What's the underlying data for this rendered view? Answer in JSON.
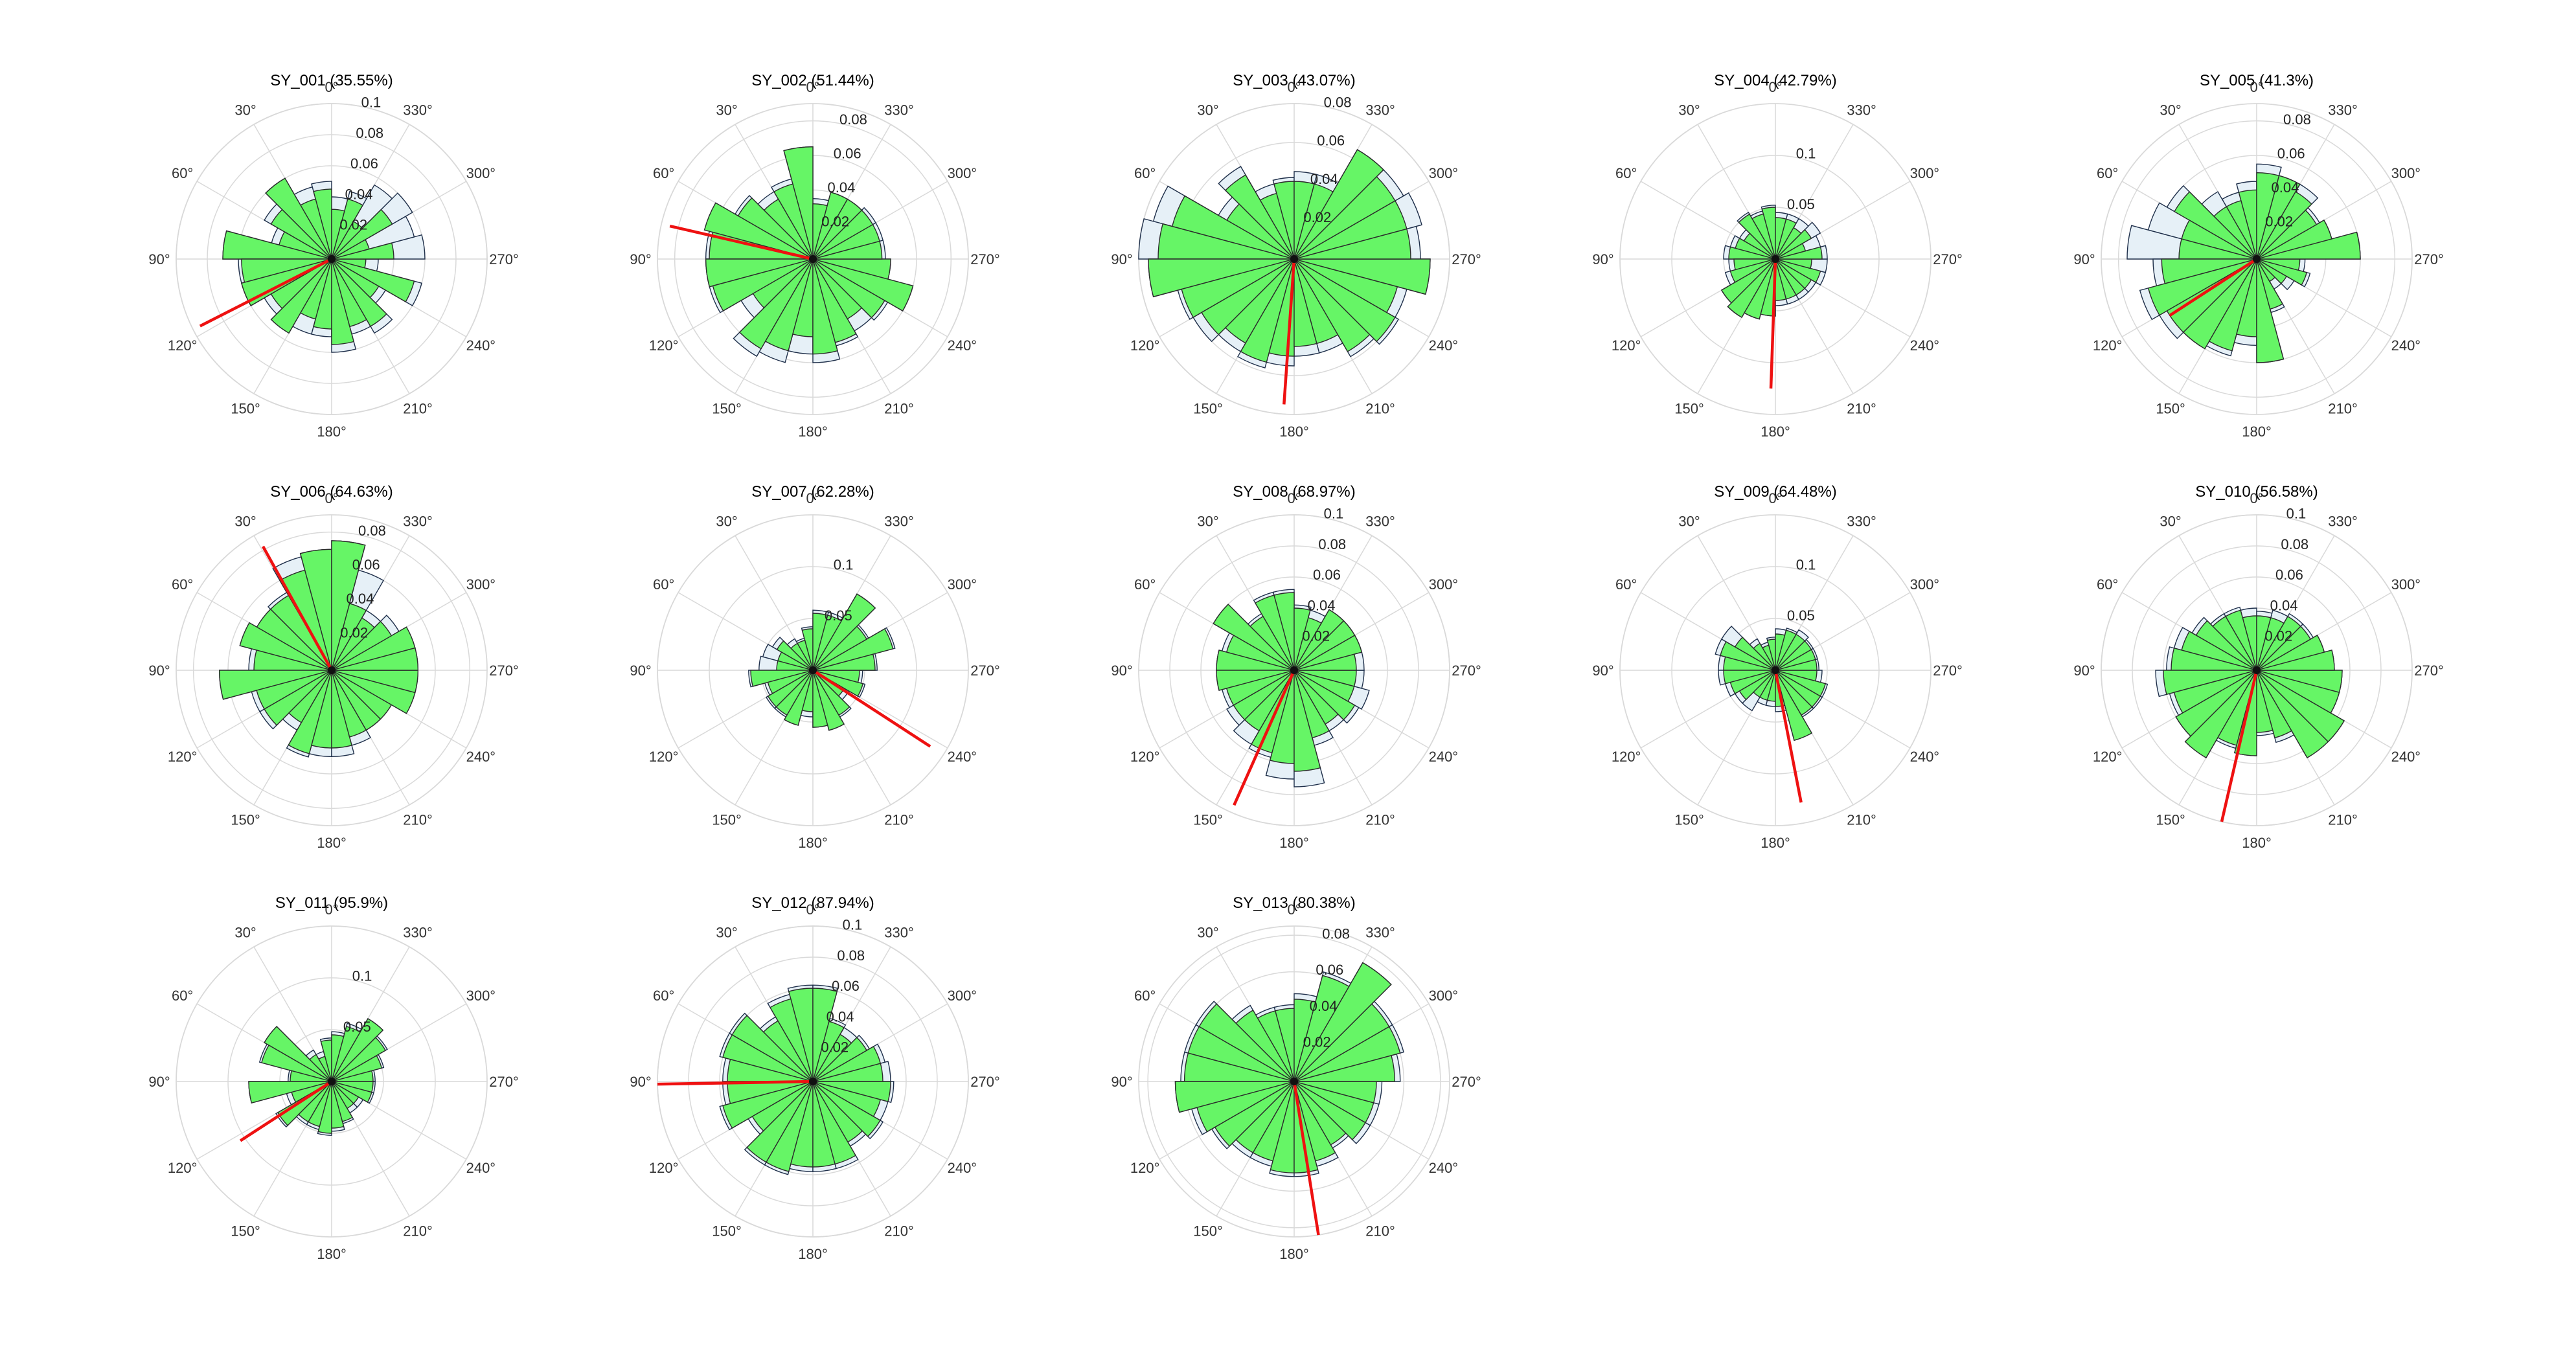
{
  "colors": {
    "bar_fill": "#66f566",
    "bar_edge": "#2b2b2b",
    "ghost_fill": "#e6f0f7",
    "ghost_edge": "#1f2f4a",
    "grid": "#d9d9d9",
    "mean_line": "#ee1111",
    "background": "#ffffff"
  },
  "chart_data": [
    {
      "type": "polar-bar",
      "title": "SY_001 (35.55%)",
      "theta_zero": "top",
      "theta_direction": "counterclockwise",
      "angle_ticks": [
        "0°",
        "30°",
        "60°",
        "90°",
        "120°",
        "150°",
        "180°",
        "210°",
        "240°",
        "270°",
        "300°",
        "330°"
      ],
      "r_ticks": [
        "0.02",
        "0.04",
        "0.06",
        "0.08",
        "0.1"
      ],
      "rmax": 0.1,
      "bins": 24,
      "values": [
        0.045,
        0.04,
        0.06,
        0.045,
        0.035,
        0.07,
        0.058,
        0.06,
        0.045,
        0.055,
        0.04,
        0.045,
        0.055,
        0.045,
        0.05,
        0.035,
        0.055,
        0.022,
        0.04,
        0.025,
        0.045,
        0.028,
        0.04,
        0.032
      ],
      "ghost": [
        0.05,
        0.048,
        0.06,
        0.05,
        0.04,
        0.07,
        0.06,
        0.06,
        0.05,
        0.055,
        0.05,
        0.05,
        0.06,
        0.05,
        0.055,
        0.04,
        0.06,
        0.03,
        0.06,
        0.055,
        0.06,
        0.055,
        0.045,
        0.04
      ],
      "mean_angle": 117,
      "mean_length": 0.095
    },
    {
      "type": "polar-bar",
      "title": "SY_002 (51.44%)",
      "theta_zero": "top",
      "theta_direction": "counterclockwise",
      "angle_ticks": [
        "0°",
        "30°",
        "60°",
        "90°",
        "120°",
        "150°",
        "180°",
        "210°",
        "240°",
        "270°",
        "300°",
        "330°"
      ],
      "r_ticks": [
        "0.02",
        "0.04",
        "0.06",
        "0.08"
      ],
      "rmax": 0.09,
      "bins": 24,
      "values": [
        0.065,
        0.045,
        0.04,
        0.05,
        0.065,
        0.06,
        0.062,
        0.06,
        0.04,
        0.06,
        0.055,
        0.045,
        0.055,
        0.05,
        0.04,
        0.048,
        0.06,
        0.045,
        0.04,
        0.04,
        0.04,
        0.04,
        0.04,
        0.032
      ],
      "ghost": [
        0.065,
        0.048,
        0.045,
        0.052,
        0.065,
        0.062,
        0.062,
        0.062,
        0.048,
        0.065,
        0.062,
        0.055,
        0.06,
        0.052,
        0.048,
        0.05,
        0.06,
        0.045,
        0.042,
        0.042,
        0.042,
        0.04,
        0.04,
        0.035
      ],
      "mean_angle": 77,
      "mean_length": 0.085
    },
    {
      "type": "polar-bar",
      "title": "SY_003 (43.07%)",
      "theta_zero": "top",
      "theta_direction": "counterclockwise",
      "angle_ticks": [
        "0°",
        "30°",
        "60°",
        "90°",
        "120°",
        "150°",
        "180°",
        "210°",
        "240°",
        "270°",
        "300°",
        "330°"
      ],
      "r_ticks": [
        "0.02",
        "0.04",
        "0.06",
        "0.08"
      ],
      "rmax": 0.08,
      "bins": 24,
      "values": [
        0.04,
        0.035,
        0.05,
        0.04,
        0.065,
        0.07,
        0.075,
        0.06,
        0.055,
        0.05,
        0.055,
        0.05,
        0.045,
        0.045,
        0.055,
        0.06,
        0.055,
        0.07,
        0.06,
        0.06,
        0.06,
        0.065,
        0.04,
        0.04
      ],
      "ghost": [
        0.042,
        0.04,
        0.055,
        0.045,
        0.075,
        0.08,
        0.075,
        0.062,
        0.06,
        0.055,
        0.058,
        0.055,
        0.05,
        0.05,
        0.058,
        0.062,
        0.06,
        0.07,
        0.065,
        0.068,
        0.065,
        0.065,
        0.045,
        0.045
      ],
      "mean_angle": 176,
      "mean_length": 0.075
    },
    {
      "type": "polar-bar",
      "title": "SY_004 (42.79%)",
      "theta_zero": "top",
      "theta_direction": "counterclockwise",
      "angle_ticks": [
        "0°",
        "30°",
        "60°",
        "90°",
        "120°",
        "150°",
        "180°",
        "210°",
        "240°",
        "270°",
        "300°",
        "330°"
      ],
      "r_ticks": [
        "0.05",
        "0.1"
      ],
      "rmax": 0.15,
      "bins": 24,
      "values": [
        0.05,
        0.045,
        0.05,
        0.035,
        0.04,
        0.045,
        0.04,
        0.045,
        0.06,
        0.065,
        0.06,
        0.055,
        0.04,
        0.04,
        0.04,
        0.04,
        0.045,
        0.035,
        0.045,
        0.03,
        0.04,
        0.035,
        0.04,
        0.04
      ],
      "ghost": [
        0.052,
        0.048,
        0.052,
        0.04,
        0.045,
        0.05,
        0.045,
        0.05,
        0.06,
        0.065,
        0.06,
        0.055,
        0.045,
        0.045,
        0.045,
        0.045,
        0.05,
        0.05,
        0.05,
        0.045,
        0.05,
        0.045,
        0.045,
        0.045
      ],
      "mean_angle": 178,
      "mean_length": 0.125
    },
    {
      "type": "polar-bar",
      "title": "SY_005 (41.3%)",
      "theta_zero": "top",
      "theta_direction": "counterclockwise",
      "angle_ticks": [
        "0°",
        "30°",
        "60°",
        "90°",
        "120°",
        "150°",
        "180°",
        "210°",
        "240°",
        "270°",
        "300°",
        "330°"
      ],
      "r_ticks": [
        "0.02",
        "0.04",
        "0.06",
        "0.08"
      ],
      "rmax": 0.09,
      "bins": 24,
      "values": [
        0.04,
        0.035,
        0.035,
        0.055,
        0.045,
        0.045,
        0.055,
        0.065,
        0.06,
        0.06,
        0.055,
        0.045,
        0.06,
        0.03,
        0.015,
        0.02,
        0.03,
        0.025,
        0.06,
        0.045,
        0.04,
        0.045,
        0.05,
        0.05
      ],
      "ghost": [
        0.045,
        0.04,
        0.045,
        0.06,
        0.065,
        0.075,
        0.06,
        0.07,
        0.065,
        0.06,
        0.058,
        0.05,
        0.06,
        0.032,
        0.02,
        0.025,
        0.032,
        0.028,
        0.06,
        0.045,
        0.042,
        0.05,
        0.05,
        0.055
      ],
      "mean_angle": 123,
      "mean_length": 0.06
    },
    {
      "type": "polar-bar",
      "title": "SY_006 (64.63%)",
      "theta_zero": "top",
      "theta_direction": "counterclockwise",
      "angle_ticks": [
        "0°",
        "30°",
        "60°",
        "90°",
        "120°",
        "150°",
        "180°",
        "210°",
        "240°",
        "270°",
        "300°",
        "330°"
      ],
      "r_ticks": [
        "0.02",
        "0.04",
        "0.06",
        "0.08"
      ],
      "rmax": 0.09,
      "bins": 24,
      "values": [
        0.07,
        0.06,
        0.05,
        0.05,
        0.055,
        0.045,
        0.065,
        0.045,
        0.045,
        0.035,
        0.05,
        0.045,
        0.045,
        0.04,
        0.04,
        0.04,
        0.05,
        0.05,
        0.05,
        0.05,
        0.04,
        0.035,
        0.04,
        0.075
      ],
      "ghost": [
        0.07,
        0.068,
        0.052,
        0.05,
        0.055,
        0.048,
        0.065,
        0.048,
        0.048,
        0.04,
        0.052,
        0.05,
        0.05,
        0.045,
        0.04,
        0.04,
        0.05,
        0.05,
        0.05,
        0.05,
        0.045,
        0.04,
        0.06,
        0.075
      ],
      "mean_angle": 29,
      "mean_length": 0.082
    },
    {
      "type": "polar-bar",
      "title": "SY_007 (62.28%)",
      "theta_zero": "top",
      "theta_direction": "counterclockwise",
      "angle_ticks": [
        "0°",
        "30°",
        "60°",
        "90°",
        "120°",
        "150°",
        "180°",
        "210°",
        "240°",
        "270°",
        "300°",
        "330°"
      ],
      "r_ticks": [
        "0.05",
        "0.1"
      ],
      "rmax": 0.15,
      "bins": 24,
      "values": [
        0.04,
        0.03,
        0.03,
        0.04,
        0.035,
        0.035,
        0.06,
        0.045,
        0.05,
        0.05,
        0.055,
        0.04,
        0.055,
        0.06,
        0.05,
        0.035,
        0.05,
        0.045,
        0.06,
        0.08,
        0.06,
        0.085,
        0.055,
        0.055
      ],
      "ghost": [
        0.042,
        0.032,
        0.035,
        0.045,
        0.05,
        0.052,
        0.062,
        0.048,
        0.052,
        0.052,
        0.055,
        0.045,
        0.055,
        0.06,
        0.052,
        0.04,
        0.052,
        0.048,
        0.062,
        0.082,
        0.062,
        0.085,
        0.058,
        0.058
      ],
      "mean_angle": 237,
      "mean_length": 0.135
    },
    {
      "type": "polar-bar",
      "title": "SY_008 (68.97%)",
      "theta_zero": "top",
      "theta_direction": "counterclockwise",
      "angle_ticks": [
        "0°",
        "30°",
        "60°",
        "90°",
        "120°",
        "150°",
        "180°",
        "210°",
        "240°",
        "270°",
        "300°",
        "330°"
      ],
      "r_ticks": [
        "0.02",
        "0.04",
        "0.06",
        "0.08",
        "0.1"
      ],
      "rmax": 0.1,
      "bins": 24,
      "values": [
        0.05,
        0.05,
        0.04,
        0.06,
        0.045,
        0.05,
        0.05,
        0.045,
        0.045,
        0.045,
        0.055,
        0.06,
        0.065,
        0.045,
        0.04,
        0.045,
        0.04,
        0.04,
        0.04,
        0.045,
        0.045,
        0.045,
        0.035,
        0.04
      ],
      "ghost": [
        0.052,
        0.052,
        0.042,
        0.06,
        0.048,
        0.05,
        0.05,
        0.048,
        0.05,
        0.055,
        0.058,
        0.07,
        0.075,
        0.05,
        0.045,
        0.048,
        0.05,
        0.045,
        0.045,
        0.045,
        0.045,
        0.045,
        0.04,
        0.042
      ],
      "mean_angle": 156,
      "mean_length": 0.095
    },
    {
      "type": "polar-bar",
      "title": "SY_009 (64.48%)",
      "theta_zero": "top",
      "theta_direction": "counterclockwise",
      "angle_ticks": [
        "0°",
        "30°",
        "60°",
        "90°",
        "120°",
        "150°",
        "180°",
        "210°",
        "240°",
        "270°",
        "300°",
        "330°"
      ],
      "r_ticks": [
        "0.05",
        "0.1"
      ],
      "rmax": 0.15,
      "bins": 24,
      "values": [
        0.03,
        0.025,
        0.03,
        0.045,
        0.055,
        0.05,
        0.05,
        0.045,
        0.04,
        0.03,
        0.03,
        0.03,
        0.035,
        0.07,
        0.05,
        0.05,
        0.05,
        0.04,
        0.04,
        0.04,
        0.04,
        0.04,
        0.04,
        0.035
      ],
      "ghost": [
        0.032,
        0.028,
        0.035,
        0.06,
        0.06,
        0.055,
        0.055,
        0.05,
        0.045,
        0.045,
        0.035,
        0.035,
        0.04,
        0.07,
        0.052,
        0.052,
        0.052,
        0.045,
        0.042,
        0.042,
        0.042,
        0.045,
        0.042,
        0.04
      ],
      "mean_angle": 191,
      "mean_length": 0.13
    },
    {
      "type": "polar-bar",
      "title": "SY_010 (56.58%)",
      "theta_zero": "top",
      "theta_direction": "counterclockwise",
      "angle_ticks": [
        "0°",
        "30°",
        "60°",
        "90°",
        "120°",
        "150°",
        "180°",
        "210°",
        "240°",
        "270°",
        "300°",
        "330°"
      ],
      "r_ticks": [
        "0.02",
        "0.04",
        "0.06",
        "0.08",
        "0.1"
      ],
      "rmax": 0.1,
      "bins": 24,
      "values": [
        0.035,
        0.04,
        0.04,
        0.045,
        0.05,
        0.055,
        0.06,
        0.055,
        0.06,
        0.065,
        0.05,
        0.055,
        0.04,
        0.045,
        0.065,
        0.065,
        0.055,
        0.055,
        0.05,
        0.045,
        0.04,
        0.04,
        0.035,
        0.035
      ],
      "ghost": [
        0.04,
        0.042,
        0.042,
        0.048,
        0.055,
        0.058,
        0.065,
        0.058,
        0.06,
        0.065,
        0.052,
        0.055,
        0.042,
        0.048,
        0.065,
        0.065,
        0.055,
        0.055,
        0.05,
        0.045,
        0.042,
        0.042,
        0.04,
        0.038
      ],
      "mean_angle": 167,
      "mean_length": 0.1
    },
    {
      "type": "polar-bar",
      "title": "SY_011 (95.9%)",
      "theta_zero": "top",
      "theta_direction": "counterclockwise",
      "angle_ticks": [
        "0°",
        "30°",
        "60°",
        "90°",
        "120°",
        "150°",
        "180°",
        "210°",
        "240°",
        "270°",
        "300°",
        "330°"
      ],
      "r_ticks": [
        "0.05",
        "0.1"
      ],
      "rmax": 0.15,
      "bins": 24,
      "values": [
        0.04,
        0.025,
        0.03,
        0.075,
        0.07,
        0.04,
        0.08,
        0.04,
        0.06,
        0.045,
        0.045,
        0.05,
        0.045,
        0.04,
        0.03,
        0.03,
        0.04,
        0.04,
        0.04,
        0.05,
        0.06,
        0.07,
        0.055,
        0.045
      ],
      "ghost": [
        0.042,
        0.03,
        0.035,
        0.075,
        0.072,
        0.042,
        0.08,
        0.045,
        0.062,
        0.048,
        0.048,
        0.052,
        0.048,
        0.042,
        0.035,
        0.035,
        0.042,
        0.042,
        0.042,
        0.052,
        0.062,
        0.07,
        0.058,
        0.048
      ],
      "mean_angle": 123,
      "mean_length": 0.105
    },
    {
      "type": "polar-bar",
      "title": "SY_012 (87.94%)",
      "theta_zero": "top",
      "theta_direction": "counterclockwise",
      "angle_ticks": [
        "0°",
        "30°",
        "60°",
        "90°",
        "120°",
        "150°",
        "180°",
        "210°",
        "240°",
        "270°",
        "300°",
        "330°"
      ],
      "r_ticks": [
        "0.02",
        "0.04",
        "0.06",
        "0.08",
        "0.1"
      ],
      "rmax": 0.1,
      "bins": 24,
      "values": [
        0.06,
        0.055,
        0.045,
        0.06,
        0.06,
        0.055,
        0.055,
        0.06,
        0.045,
        0.06,
        0.06,
        0.055,
        0.055,
        0.055,
        0.045,
        0.05,
        0.045,
        0.05,
        0.045,
        0.045,
        0.04,
        0.035,
        0.04,
        0.06
      ],
      "ghost": [
        0.062,
        0.058,
        0.048,
        0.062,
        0.062,
        0.058,
        0.058,
        0.062,
        0.048,
        0.062,
        0.062,
        0.058,
        0.058,
        0.058,
        0.048,
        0.052,
        0.05,
        0.052,
        0.05,
        0.048,
        0.042,
        0.04,
        0.042,
        0.062
      ],
      "mean_angle": 91,
      "mean_length": 0.1
    },
    {
      "type": "polar-bar",
      "title": "SY_013 (80.38%)",
      "theta_zero": "top",
      "theta_direction": "counterclockwise",
      "angle_ticks": [
        "0°",
        "30°",
        "60°",
        "90°",
        "120°",
        "150°",
        "180°",
        "210°",
        "240°",
        "270°",
        "300°",
        "330°"
      ],
      "r_ticks": [
        "0.02",
        "0.04",
        "0.06",
        "0.08"
      ],
      "rmax": 0.085,
      "bins": 24,
      "values": [
        0.04,
        0.04,
        0.045,
        0.06,
        0.06,
        0.06,
        0.065,
        0.055,
        0.05,
        0.045,
        0.045,
        0.05,
        0.05,
        0.045,
        0.04,
        0.045,
        0.045,
        0.045,
        0.055,
        0.06,
        0.06,
        0.075,
        0.06,
        0.045
      ],
      "ghost": [
        0.042,
        0.042,
        0.048,
        0.062,
        0.062,
        0.062,
        0.065,
        0.058,
        0.052,
        0.048,
        0.048,
        0.052,
        0.052,
        0.048,
        0.042,
        0.048,
        0.048,
        0.048,
        0.058,
        0.062,
        0.062,
        0.075,
        0.062,
        0.048
      ],
      "mean_angle": 189,
      "mean_length": 0.085
    }
  ]
}
